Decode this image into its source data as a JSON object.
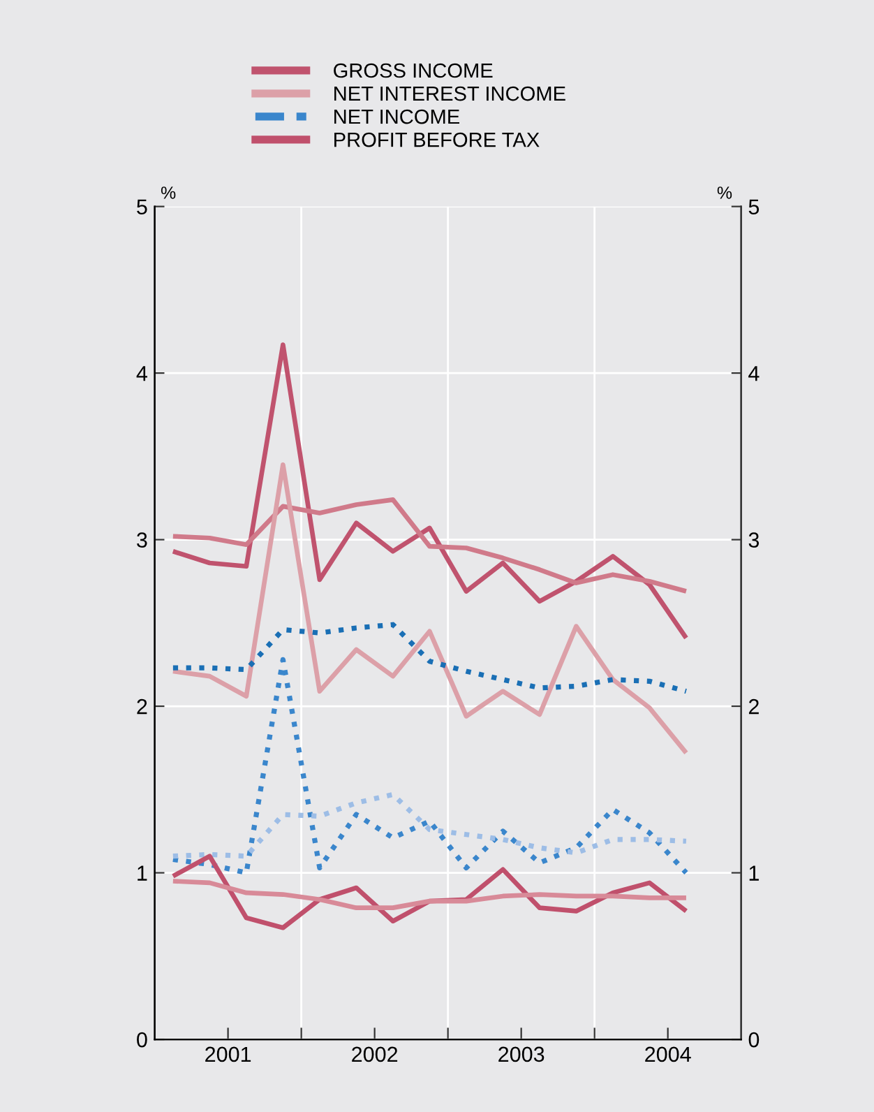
{
  "chart_data": {
    "type": "line",
    "x": [
      2001.125,
      2001.375,
      2001.625,
      2001.875,
      2002.125,
      2002.375,
      2002.625,
      2002.875,
      2003.125,
      2003.375,
      2003.625,
      2003.875,
      2004.125,
      2004.375,
      2004.625
    ],
    "series": [
      {
        "name": "GROSS INCOME",
        "color": "#c0536e",
        "line_style": "solid",
        "values": [
          2.93,
          2.86,
          2.84,
          4.17,
          2.76,
          3.1,
          2.93,
          3.07,
          2.69,
          2.86,
          2.63,
          2.75,
          2.9,
          2.73,
          2.41
        ]
      },
      {
        "color": "#d07a8a",
        "line_style": "solid",
        "values": [
          3.02,
          3.01,
          2.97,
          3.2,
          3.16,
          3.21,
          3.24,
          2.96,
          2.95,
          2.89,
          2.82,
          2.74,
          2.79,
          2.75,
          2.69
        ]
      },
      {
        "name": "NET INTEREST INCOME",
        "color": "#dca0a8",
        "line_style": "solid",
        "values": [
          2.21,
          2.18,
          2.06,
          3.45,
          2.09,
          2.34,
          2.18,
          2.45,
          1.94,
          2.09,
          1.95,
          2.48,
          2.16,
          1.99,
          1.72
        ]
      },
      {
        "color": "#1a6fb5",
        "line_style": "dotted",
        "values": [
          2.23,
          2.23,
          2.22,
          2.46,
          2.44,
          2.47,
          2.49,
          2.27,
          2.21,
          2.16,
          2.11,
          2.12,
          2.16,
          2.15,
          2.09
        ]
      },
      {
        "name": "NET INCOME",
        "color": "#3a86cc",
        "line_style": "dotted",
        "values": [
          1.08,
          1.05,
          1.0,
          2.28,
          1.03,
          1.35,
          1.21,
          1.31,
          1.03,
          1.25,
          1.06,
          1.15,
          1.38,
          1.24,
          1.0
        ]
      },
      {
        "color": "#9dbde6",
        "line_style": "dotted",
        "values": [
          1.1,
          1.11,
          1.1,
          1.35,
          1.34,
          1.42,
          1.47,
          1.26,
          1.23,
          1.2,
          1.15,
          1.12,
          1.2,
          1.2,
          1.19
        ]
      },
      {
        "name": "PROFIT BEFORE TAX",
        "color": "#c0506c",
        "line_style": "solid",
        "values": [
          0.98,
          1.1,
          0.73,
          0.67,
          0.84,
          0.91,
          0.71,
          0.83,
          0.84,
          1.02,
          0.79,
          0.77,
          0.88,
          0.94,
          0.77
        ]
      },
      {
        "color": "#d88a98",
        "line_style": "solid",
        "values": [
          0.95,
          0.94,
          0.88,
          0.87,
          0.84,
          0.79,
          0.79,
          0.83,
          0.83,
          0.86,
          0.87,
          0.86,
          0.86,
          0.85,
          0.85
        ]
      }
    ],
    "xlim": [
      2001,
      2005
    ],
    "xticks": [
      {
        "value": 2001.5,
        "label": "2001"
      },
      {
        "value": 2002,
        "label": null
      },
      {
        "value": 2002.5,
        "label": "2002"
      },
      {
        "value": 2003,
        "label": null
      },
      {
        "value": 2003.5,
        "label": "2003"
      },
      {
        "value": 2004,
        "label": null
      },
      {
        "value": 2004.5,
        "label": "2004"
      }
    ],
    "ylim": [
      0,
      5
    ],
    "yticks": [
      0,
      1,
      2,
      3,
      4,
      5
    ],
    "y2lim": [
      0,
      5
    ],
    "y2ticks": [
      0,
      1,
      2,
      3,
      4,
      5
    ],
    "ylabel": "%",
    "y2label": "%",
    "grid": true,
    "legend": "top",
    "marker": "none"
  }
}
